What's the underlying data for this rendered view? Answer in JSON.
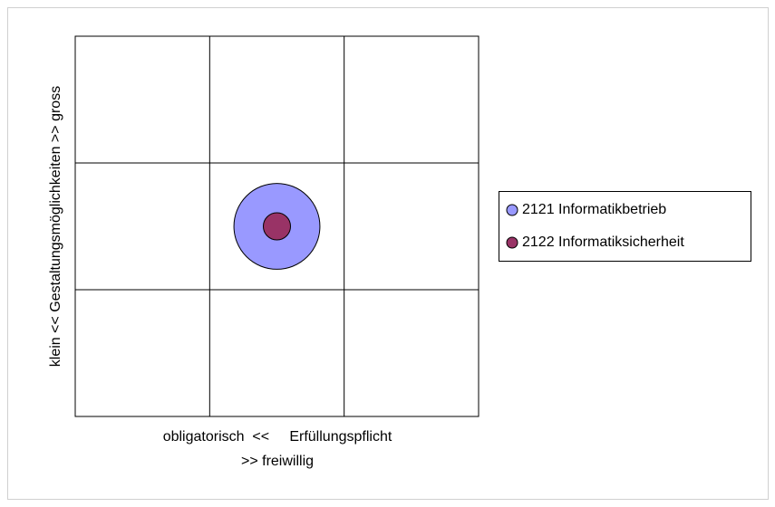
{
  "chart_data": {
    "type": "bubble",
    "x_label": [
      "obligatorisch  <<     Erfüllungspflicht",
      ">> freiwillig"
    ],
    "y_label": "klein << Gestaltungsmöglichkeiten >> gross",
    "xlim": [
      0,
      3
    ],
    "ylim": [
      0,
      3
    ],
    "xticks": [
      0,
      1,
      2,
      3
    ],
    "yticks": [
      0,
      1,
      2,
      3
    ],
    "grid": true,
    "legend": "right",
    "series": [
      {
        "name": "2121 Informatikbetrieb",
        "color": "#9999ff",
        "x": [
          1.5
        ],
        "values": [
          1.5
        ],
        "sizes": [
          10
        ]
      },
      {
        "name": "2122 Informatiksicherheit",
        "color": "#993366",
        "x": [
          1.5
        ],
        "values": [
          1.5
        ],
        "sizes": [
          1
        ]
      }
    ]
  }
}
